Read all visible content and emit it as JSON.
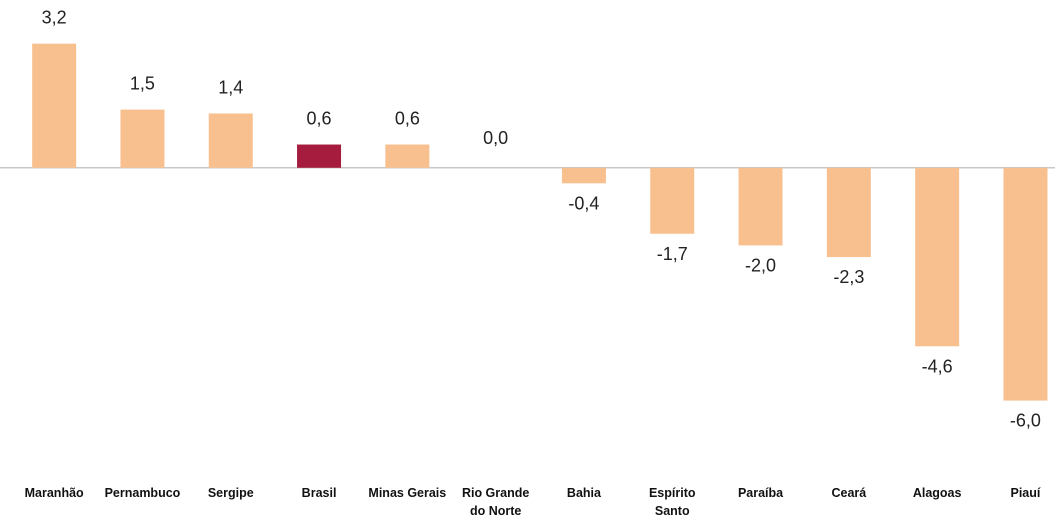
{
  "chart_data": {
    "type": "bar",
    "categories": [
      "Maranhão",
      "Pernambuco",
      "Sergipe",
      "Brasil",
      "Minas Gerais",
      "Rio Grande do Norte",
      "Bahia",
      "Espírito Santo",
      "Paraíba",
      "Ceará",
      "Alagoas",
      "Piauí"
    ],
    "values": [
      3.2,
      1.5,
      1.4,
      0.6,
      0.6,
      0.0,
      -0.4,
      -1.7,
      -2.0,
      -2.3,
      -4.6,
      -6.0
    ],
    "value_labels": [
      "3,2",
      "1,5",
      "1,4",
      "0,6",
      "0,6",
      "0,0",
      "-0,4",
      "-1,7",
      "-2,0",
      "-2,3",
      "-4,6",
      "-6,0"
    ],
    "colors": [
      "#f9c08f",
      "#f9c08f",
      "#f9c08f",
      "#a51c3f",
      "#f9c08f",
      "#f9c08f",
      "#f9c08f",
      "#f9c08f",
      "#f9c08f",
      "#f9c08f",
      "#f9c08f",
      "#f9c08f"
    ],
    "ylim": [
      -6.5,
      3.5
    ]
  }
}
